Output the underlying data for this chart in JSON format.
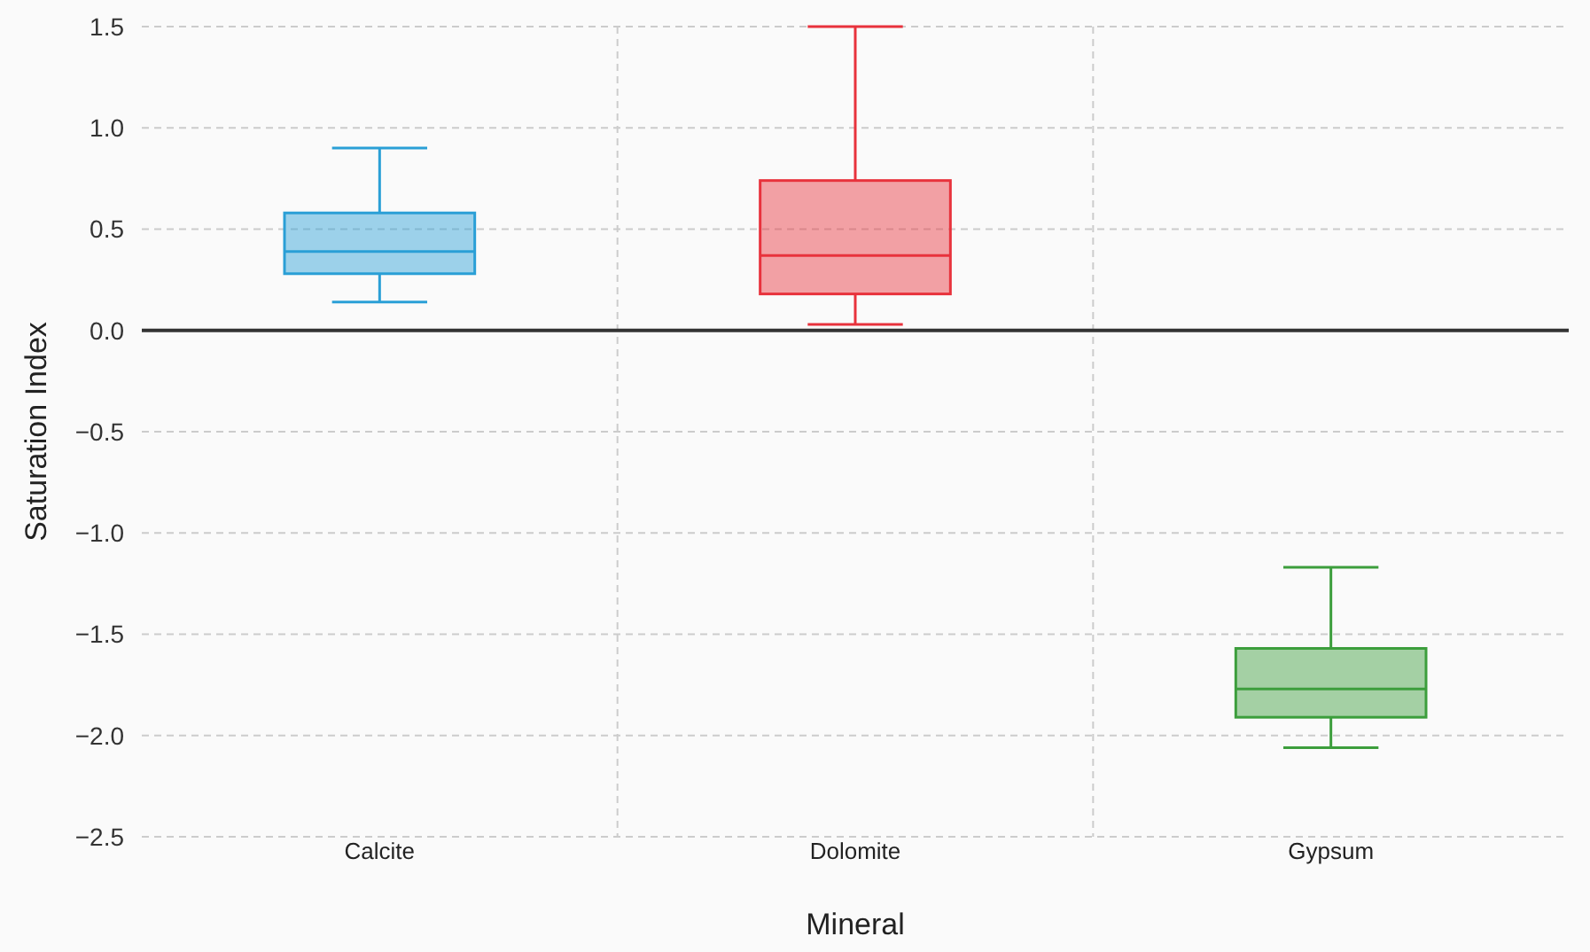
{
  "chart_data": {
    "type": "box",
    "xlabel": "Mineral",
    "ylabel": "Saturation Index",
    "categories": [
      "Calcite",
      "Dolomite",
      "Gypsum"
    ],
    "boxes": [
      {
        "low": 0.14,
        "q1": 0.28,
        "median": 0.39,
        "q3": 0.58,
        "high": 0.9
      },
      {
        "low": 0.03,
        "q1": 0.18,
        "median": 0.37,
        "q3": 0.74,
        "high": 1.5
      },
      {
        "low": -2.06,
        "q1": -1.91,
        "median": -1.77,
        "q3": -1.57,
        "high": -1.17
      }
    ],
    "colors": [
      "#2a9fd6",
      "#e8323c",
      "#3c9e3c"
    ],
    "ylim": [
      -2.5,
      1.5
    ],
    "yticks": [
      {
        "value": -2.5,
        "label": "−2.5"
      },
      {
        "value": -2,
        "label": "−2.0"
      },
      {
        "value": -1.5,
        "label": "−1.5"
      },
      {
        "value": -1,
        "label": "−1.0"
      },
      {
        "value": -0.5,
        "label": "−0.5"
      },
      {
        "value": 0,
        "label": "0.0"
      },
      {
        "value": 0.5,
        "label": "0.5"
      },
      {
        "value": 1,
        "label": "1.0"
      },
      {
        "value": 1.5,
        "label": "1.5"
      }
    ],
    "ref_lines": [
      {
        "axis": "y",
        "value": 0,
        "color": "#333333"
      }
    ],
    "grid": true
  }
}
